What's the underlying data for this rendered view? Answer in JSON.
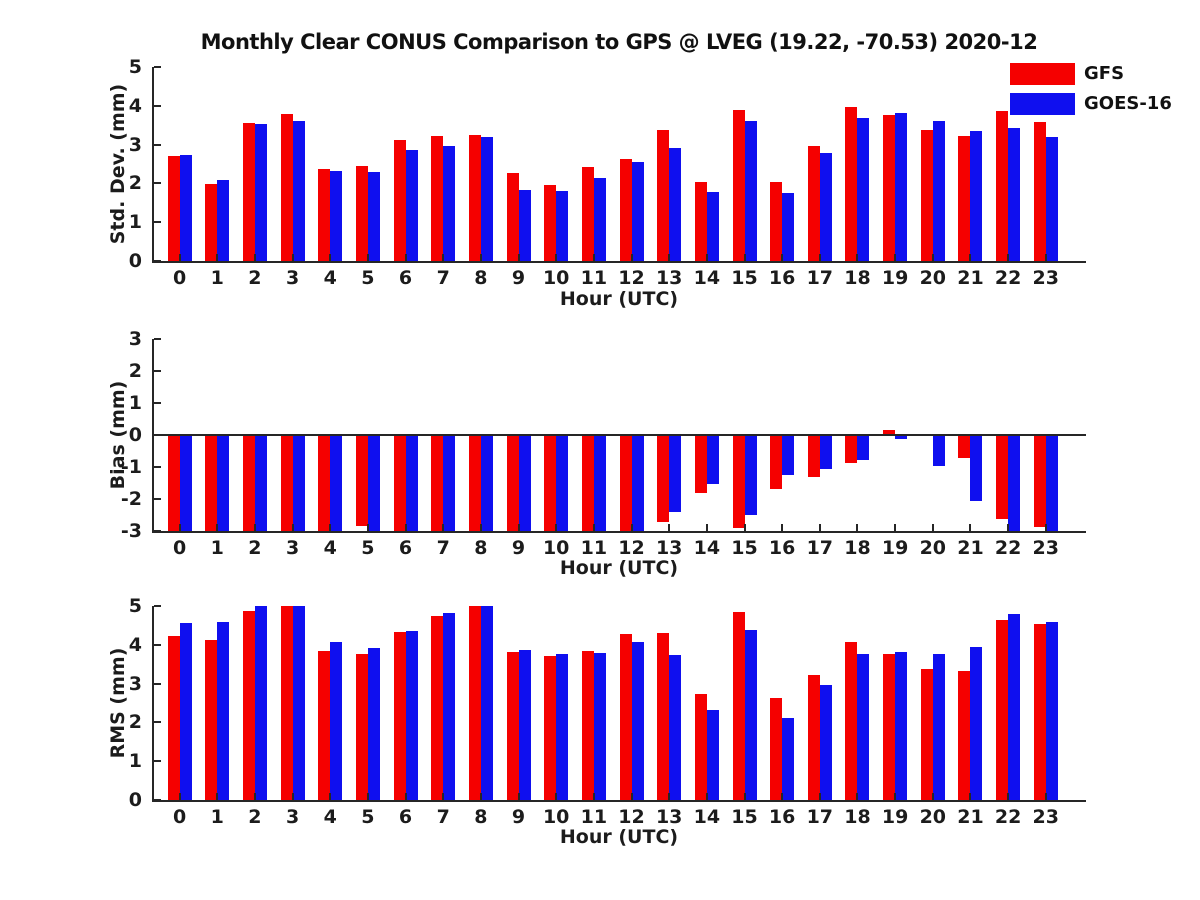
{
  "title": "Monthly Clear CONUS Comparison to GPS @ LVEG (19.22, -70.53) 2020-12",
  "legend": {
    "position": "top-right",
    "items": [
      {
        "label": "GFS",
        "color": "#f50000"
      },
      {
        "label": "GOES-16",
        "color": "#0f0fef"
      }
    ]
  },
  "colors": {
    "gfs": "#f50000",
    "goes16": "#0f0fef",
    "axis": "#262626",
    "text": "#1c1c1c",
    "background": "#ffffff"
  },
  "chart_data": [
    {
      "type": "bar",
      "panel": "std-dev",
      "title": "",
      "ylabel": "Std. Dev. (mm)",
      "xlabel": "Hour (UTC)",
      "ylim": [
        0,
        5
      ],
      "yticks": [
        0,
        1,
        2,
        3,
        4,
        5
      ],
      "grid": false,
      "categories": [
        "0",
        "1",
        "2",
        "3",
        "4",
        "5",
        "6",
        "7",
        "8",
        "9",
        "10",
        "11",
        "12",
        "13",
        "14",
        "15",
        "16",
        "17",
        "18",
        "19",
        "20",
        "21",
        "22",
        "23"
      ],
      "series": [
        {
          "name": "GFS",
          "color": "#f50000",
          "values": [
            2.7,
            1.98,
            3.55,
            3.78,
            2.38,
            2.45,
            3.12,
            3.23,
            3.26,
            2.28,
            1.96,
            2.43,
            2.63,
            3.37,
            2.04,
            3.88,
            2.03,
            2.97,
            3.96,
            3.76,
            3.38,
            3.23,
            3.87,
            3.57
          ]
        },
        {
          "name": "GOES-16",
          "color": "#0f0fef",
          "values": [
            2.72,
            2.1,
            3.54,
            3.62,
            2.33,
            2.3,
            2.87,
            2.97,
            3.19,
            1.83,
            1.81,
            2.15,
            2.55,
            2.9,
            1.79,
            3.61,
            1.76,
            2.79,
            3.69,
            3.81,
            3.62,
            3.35,
            3.44,
            3.2
          ]
        }
      ]
    },
    {
      "type": "bar",
      "panel": "bias",
      "title": "",
      "ylabel": "Bias (mm)",
      "xlabel": "Hour (UTC)",
      "ylim": [
        -3,
        3
      ],
      "yticks": [
        -3,
        -2,
        -1,
        0,
        1,
        2,
        3
      ],
      "grid": false,
      "baseline": 0,
      "note": "values at -3.0 are clipped at the axis limit",
      "categories": [
        "0",
        "1",
        "2",
        "3",
        "4",
        "5",
        "6",
        "7",
        "8",
        "9",
        "10",
        "11",
        "12",
        "13",
        "14",
        "15",
        "16",
        "17",
        "18",
        "19",
        "20",
        "21",
        "22",
        "23"
      ],
      "series": [
        {
          "name": "GFS",
          "color": "#f50000",
          "values": [
            -3.0,
            -3.0,
            -3.0,
            -3.0,
            -3.0,
            -2.85,
            -3.0,
            -3.0,
            -3.0,
            -3.0,
            -3.0,
            -3.0,
            -3.0,
            -2.72,
            -1.8,
            -2.9,
            -1.7,
            -1.3,
            -0.88,
            0.17,
            -0.04,
            -0.72,
            -2.62,
            -2.87
          ]
        },
        {
          "name": "GOES-16",
          "color": "#0f0fef",
          "values": [
            -3.0,
            -3.0,
            -3.0,
            -3.0,
            -3.0,
            -3.0,
            -3.0,
            -3.0,
            -3.0,
            -3.0,
            -3.0,
            -3.0,
            -3.0,
            -2.4,
            -1.52,
            -2.5,
            -1.24,
            -1.05,
            -0.78,
            -0.12,
            -0.98,
            -2.07,
            -3.0,
            -3.0
          ]
        }
      ]
    },
    {
      "type": "bar",
      "panel": "rms",
      "title": "",
      "ylabel": "RMS (mm)",
      "xlabel": "Hour (UTC)",
      "ylim": [
        0,
        5
      ],
      "yticks": [
        0,
        1,
        2,
        3,
        4,
        5
      ],
      "grid": false,
      "categories": [
        "0",
        "1",
        "2",
        "3",
        "4",
        "5",
        "6",
        "7",
        "8",
        "9",
        "10",
        "11",
        "12",
        "13",
        "14",
        "15",
        "16",
        "17",
        "18",
        "19",
        "20",
        "21",
        "22",
        "23"
      ],
      "series": [
        {
          "name": "GFS",
          "color": "#f50000",
          "values": [
            4.22,
            4.12,
            4.87,
            5.0,
            3.83,
            3.76,
            4.33,
            4.75,
            5.0,
            3.82,
            3.71,
            3.84,
            4.29,
            4.31,
            2.72,
            4.84,
            2.63,
            3.21,
            4.07,
            3.76,
            3.37,
            3.33,
            4.63,
            4.54
          ]
        },
        {
          "name": "GOES-16",
          "color": "#0f0fef",
          "values": [
            4.56,
            4.6,
            5.0,
            5.0,
            4.06,
            3.91,
            4.36,
            4.82,
            5.0,
            3.87,
            3.77,
            3.79,
            4.06,
            3.73,
            2.32,
            4.37,
            2.12,
            2.96,
            3.76,
            3.82,
            3.77,
            3.95,
            4.8,
            4.6
          ]
        }
      ]
    }
  ]
}
